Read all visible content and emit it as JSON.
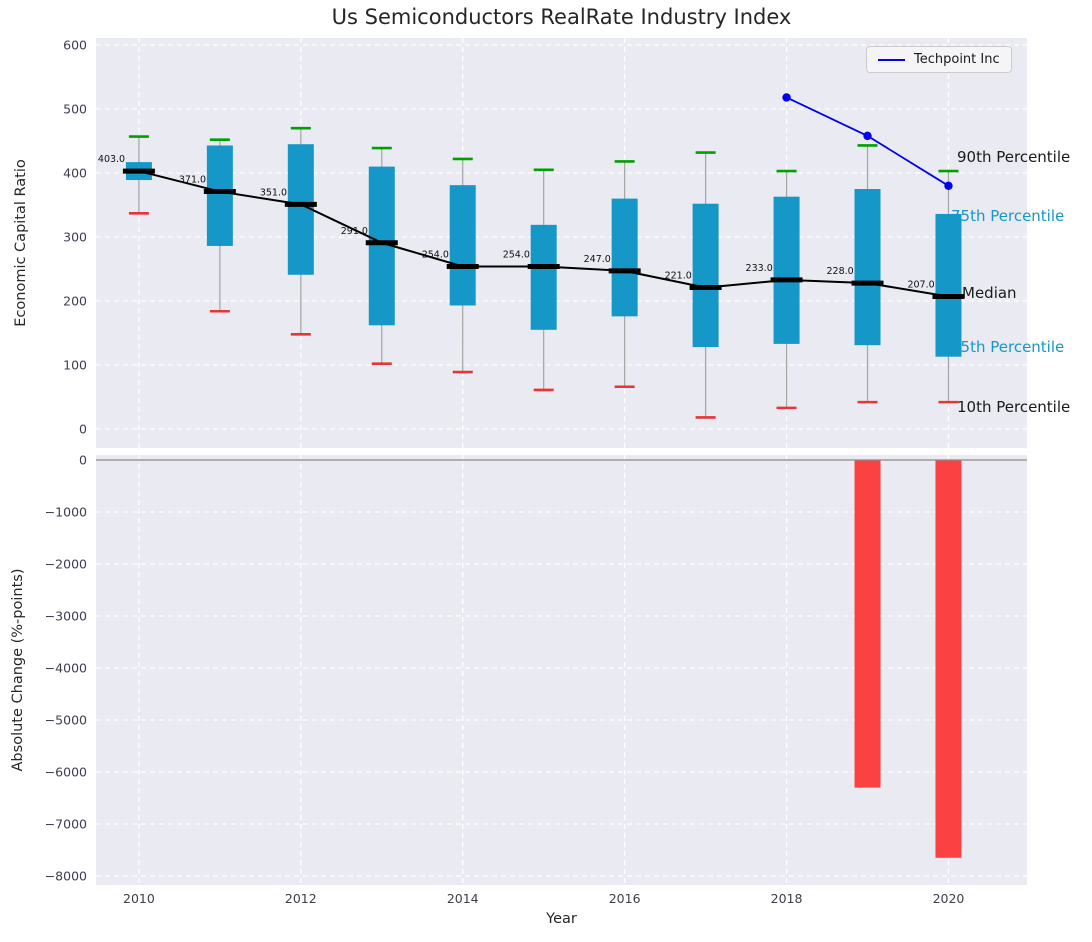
{
  "figure": {
    "title": "Us Semiconductors RealRate Industry Index",
    "xlabel": "Year",
    "legend": {
      "label": "Techpoint Inc",
      "color": "#0000ee"
    },
    "annotations": {
      "p90": {
        "label": "90th Percentile",
        "color": "#1a1a1a"
      },
      "p75": {
        "label": "75th Percentile",
        "color": "#1598c8"
      },
      "median": {
        "label": "Median",
        "color": "#1a1a1a"
      },
      "p25": {
        "label": "25th Percentile",
        "color": "#1598c8"
      },
      "p10": {
        "label": "10th Percentile",
        "color": "#1a1a1a"
      }
    }
  },
  "chart_data": [
    {
      "type": "bar",
      "subtype": "percentile-range-bars-with-median-line",
      "title": "Us Semiconductors RealRate Industry Index",
      "ylabel": "Economic Capital Ratio",
      "ylim": [
        0,
        600
      ],
      "yticks": [
        0,
        100,
        200,
        300,
        400,
        500,
        600
      ],
      "xticks": [
        2010,
        2012,
        2014,
        2016,
        2018,
        2020
      ],
      "grid": true,
      "legend_position": "upper right",
      "categories": [
        2010,
        2011,
        2012,
        2013,
        2014,
        2015,
        2016,
        2017,
        2018,
        2019,
        2020
      ],
      "median": [
        403,
        371,
        351,
        291,
        254,
        254,
        247,
        221,
        233,
        228,
        207
      ],
      "median_labels": [
        "403.0",
        "371.0",
        "351.0",
        "291.0",
        "254.0",
        "254.0",
        "247.0",
        "221.0",
        "233.0",
        "228.0",
        "207.0"
      ],
      "p25": [
        389,
        286,
        241,
        162,
        193,
        155,
        176,
        128,
        133,
        131,
        113
      ],
      "p75": [
        417,
        443,
        445,
        410,
        381,
        319,
        360,
        352,
        363,
        375,
        336
      ],
      "p10": [
        337,
        184,
        148,
        102,
        89,
        61,
        66,
        18,
        33,
        42,
        42
      ],
      "p90": [
        457,
        452,
        470,
        439,
        422,
        405,
        418,
        432,
        403,
        443,
        403
      ],
      "series": [
        {
          "name": "Techpoint Inc",
          "x": [
            2018,
            2019,
            2020
          ],
          "y": [
            518,
            458,
            380
          ],
          "color": "#0000ee",
          "marker": "circle"
        }
      ],
      "colors": {
        "range_bar": "#1598c8",
        "p90_cap": "#00a000",
        "p10_cap": "#e53535",
        "median_line": "#000000",
        "whisker": "#a3a3a3"
      }
    },
    {
      "type": "bar",
      "ylabel": "Absolute Change (%-points)",
      "xlabel": "Year",
      "ylim": [
        -8000,
        0
      ],
      "yticks": [
        0,
        -1000,
        -2000,
        -3000,
        -4000,
        -5000,
        -6000,
        -7000,
        -8000
      ],
      "xticks": [
        2010,
        2012,
        2014,
        2016,
        2018,
        2020
      ],
      "grid": true,
      "categories": [
        2019,
        2020
      ],
      "values": [
        -6300,
        -7650
      ],
      "bar_color": "#fb4141",
      "zero_line_color": "#8a8a8a"
    }
  ]
}
